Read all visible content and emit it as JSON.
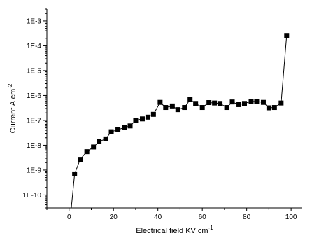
{
  "chart_data": {
    "type": "scatter",
    "xlabel": "Electrical field KV cm",
    "xlabel_sup": "-1",
    "ylabel": "Current A cm",
    "ylabel_sup": "-2",
    "xlim": [
      -10,
      105
    ],
    "ylim": [
      3e-11,
      0.003
    ],
    "y_scale": "log",
    "grid": false,
    "x_ticks": [
      0,
      20,
      40,
      60,
      80,
      100
    ],
    "x_tick_labels": [
      "0",
      "20",
      "40",
      "60",
      "80",
      "100"
    ],
    "y_ticks": [
      1e-10,
      1e-09,
      1e-08,
      1e-07,
      1e-06,
      1e-05,
      0.0001,
      0.001
    ],
    "y_tick_labels": [
      "1E-10",
      "1E-9",
      "1E-8",
      "1E-7",
      "1E-6",
      "1E-5",
      "1E-4",
      "1E-3"
    ],
    "series": [
      {
        "marker": "square",
        "color": "#000000",
        "line_start": [
          1.0,
          3e-11
        ],
        "x": [
          2.5,
          5,
          8,
          11,
          13.5,
          16.5,
          19,
          22,
          25,
          27.5,
          30,
          33,
          35.5,
          38,
          41,
          43.5,
          46.5,
          49,
          52,
          54.5,
          57,
          60,
          63,
          65.5,
          68,
          71,
          73.5,
          76.5,
          79,
          82,
          84.5,
          87.5,
          90,
          92.5,
          95.5,
          98
        ],
        "y": [
          7e-10,
          2.7e-09,
          5.5e-09,
          8.5e-09,
          1.4e-08,
          1.8e-08,
          3.5e-08,
          4.2e-08,
          5.2e-08,
          6e-08,
          1e-07,
          1.15e-07,
          1.35e-07,
          1.75e-07,
          5.3e-07,
          3.3e-07,
          3.8e-07,
          2.7e-07,
          3.3e-07,
          6.8e-07,
          4.8e-07,
          3.3e-07,
          5.2e-07,
          5e-07,
          4.8e-07,
          3.3e-07,
          5.5e-07,
          4.3e-07,
          4.8e-07,
          5.8e-07,
          5.8e-07,
          5.3e-07,
          3.2e-07,
          3.3e-07,
          5e-07,
          0.00026
        ]
      }
    ]
  }
}
